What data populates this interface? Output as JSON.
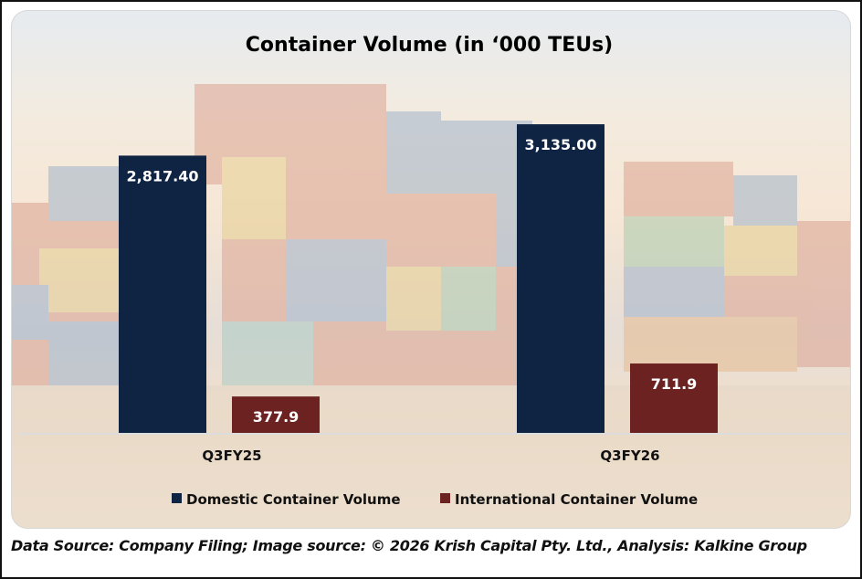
{
  "chart_data": {
    "type": "bar",
    "title": "Container Volume (in ‘000 TEUs)",
    "categories": [
      "Q3FY25",
      "Q3FY26"
    ],
    "series": [
      {
        "name": "Domestic Container Volume",
        "values": [
          2817.4,
          3135.0
        ],
        "labels": [
          "2,817.40",
          "3,135.00"
        ],
        "color": "#0f2342"
      },
      {
        "name": "International Container Volume",
        "values": [
          377.9,
          711.9
        ],
        "labels": [
          "377.9",
          "711.9"
        ],
        "color": "#6b2220"
      }
    ],
    "xlabel": "",
    "ylabel": "",
    "ylim": [
      0,
      3450
    ],
    "grid": false,
    "legend": "bottom"
  },
  "footer": "Data Source: Company Filing; Image source: © 2026 Krish Capital Pty. Ltd., Analysis: Kalkine Group"
}
